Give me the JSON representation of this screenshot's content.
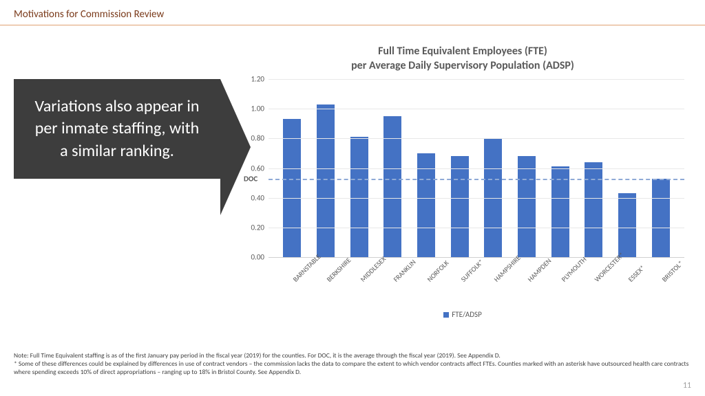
{
  "header": {
    "title": "Motivations for Commission Review"
  },
  "callout": {
    "text": "Variations also appear in per inmate staffing, with a similar ranking."
  },
  "chart": {
    "type": "bar",
    "title_line1": "Full Time Equivalent Employees (FTE)",
    "title_line2": "per Average Daily Supervisory Population (ADSP)",
    "ylim": [
      0,
      1.2
    ],
    "ytick_step": 0.2,
    "yticks": [
      "0.00",
      "0.20",
      "0.40",
      "0.60",
      "0.80",
      "1.00",
      "1.20"
    ],
    "doc_value": 0.53,
    "doc_label": "DOC",
    "categories": [
      "BARNSTABLE",
      "BERKSHIRE",
      "MIDDLESEX",
      "FRANKLIN",
      "NORFOLK",
      "SUFFOLK*",
      "HAMPSHIRE",
      "HAMPDEN",
      "PLYMOUTH",
      "WORCESTER*",
      "ESSEX*",
      "BRISTOL*"
    ],
    "values": [
      0.93,
      1.03,
      0.81,
      0.95,
      0.7,
      0.68,
      0.8,
      0.68,
      0.61,
      0.64,
      0.43,
      0.53
    ],
    "bar_color": "#4472c4",
    "grid_color": "#e8e8e8",
    "doc_line_color": "#8faad6",
    "legend_label": "FTE/ADSP",
    "title_color": "#595959",
    "label_color": "#595959",
    "title_fontsize": 16,
    "tick_fontsize": 11,
    "xlabel_fontsize": 10
  },
  "footnote": {
    "line1": "Note: Full Time Equivalent staffing is as of the first January pay period in the fiscal year (2019) for the counties.  For DOC, it is the average through the fiscal year (2019).  See Appendix D.",
    "line2": "* Some of these differences could be explained by differences in use of contract vendors – the commission lacks the data to compare the extent to which vendor contracts affect FTEs. Counties marked with an asterisk have outsourced health care contracts where spending exceeds 10% of direct appropriations – ranging up to 18% in Bristol County.  See Appendix D."
  },
  "page_number": "11"
}
